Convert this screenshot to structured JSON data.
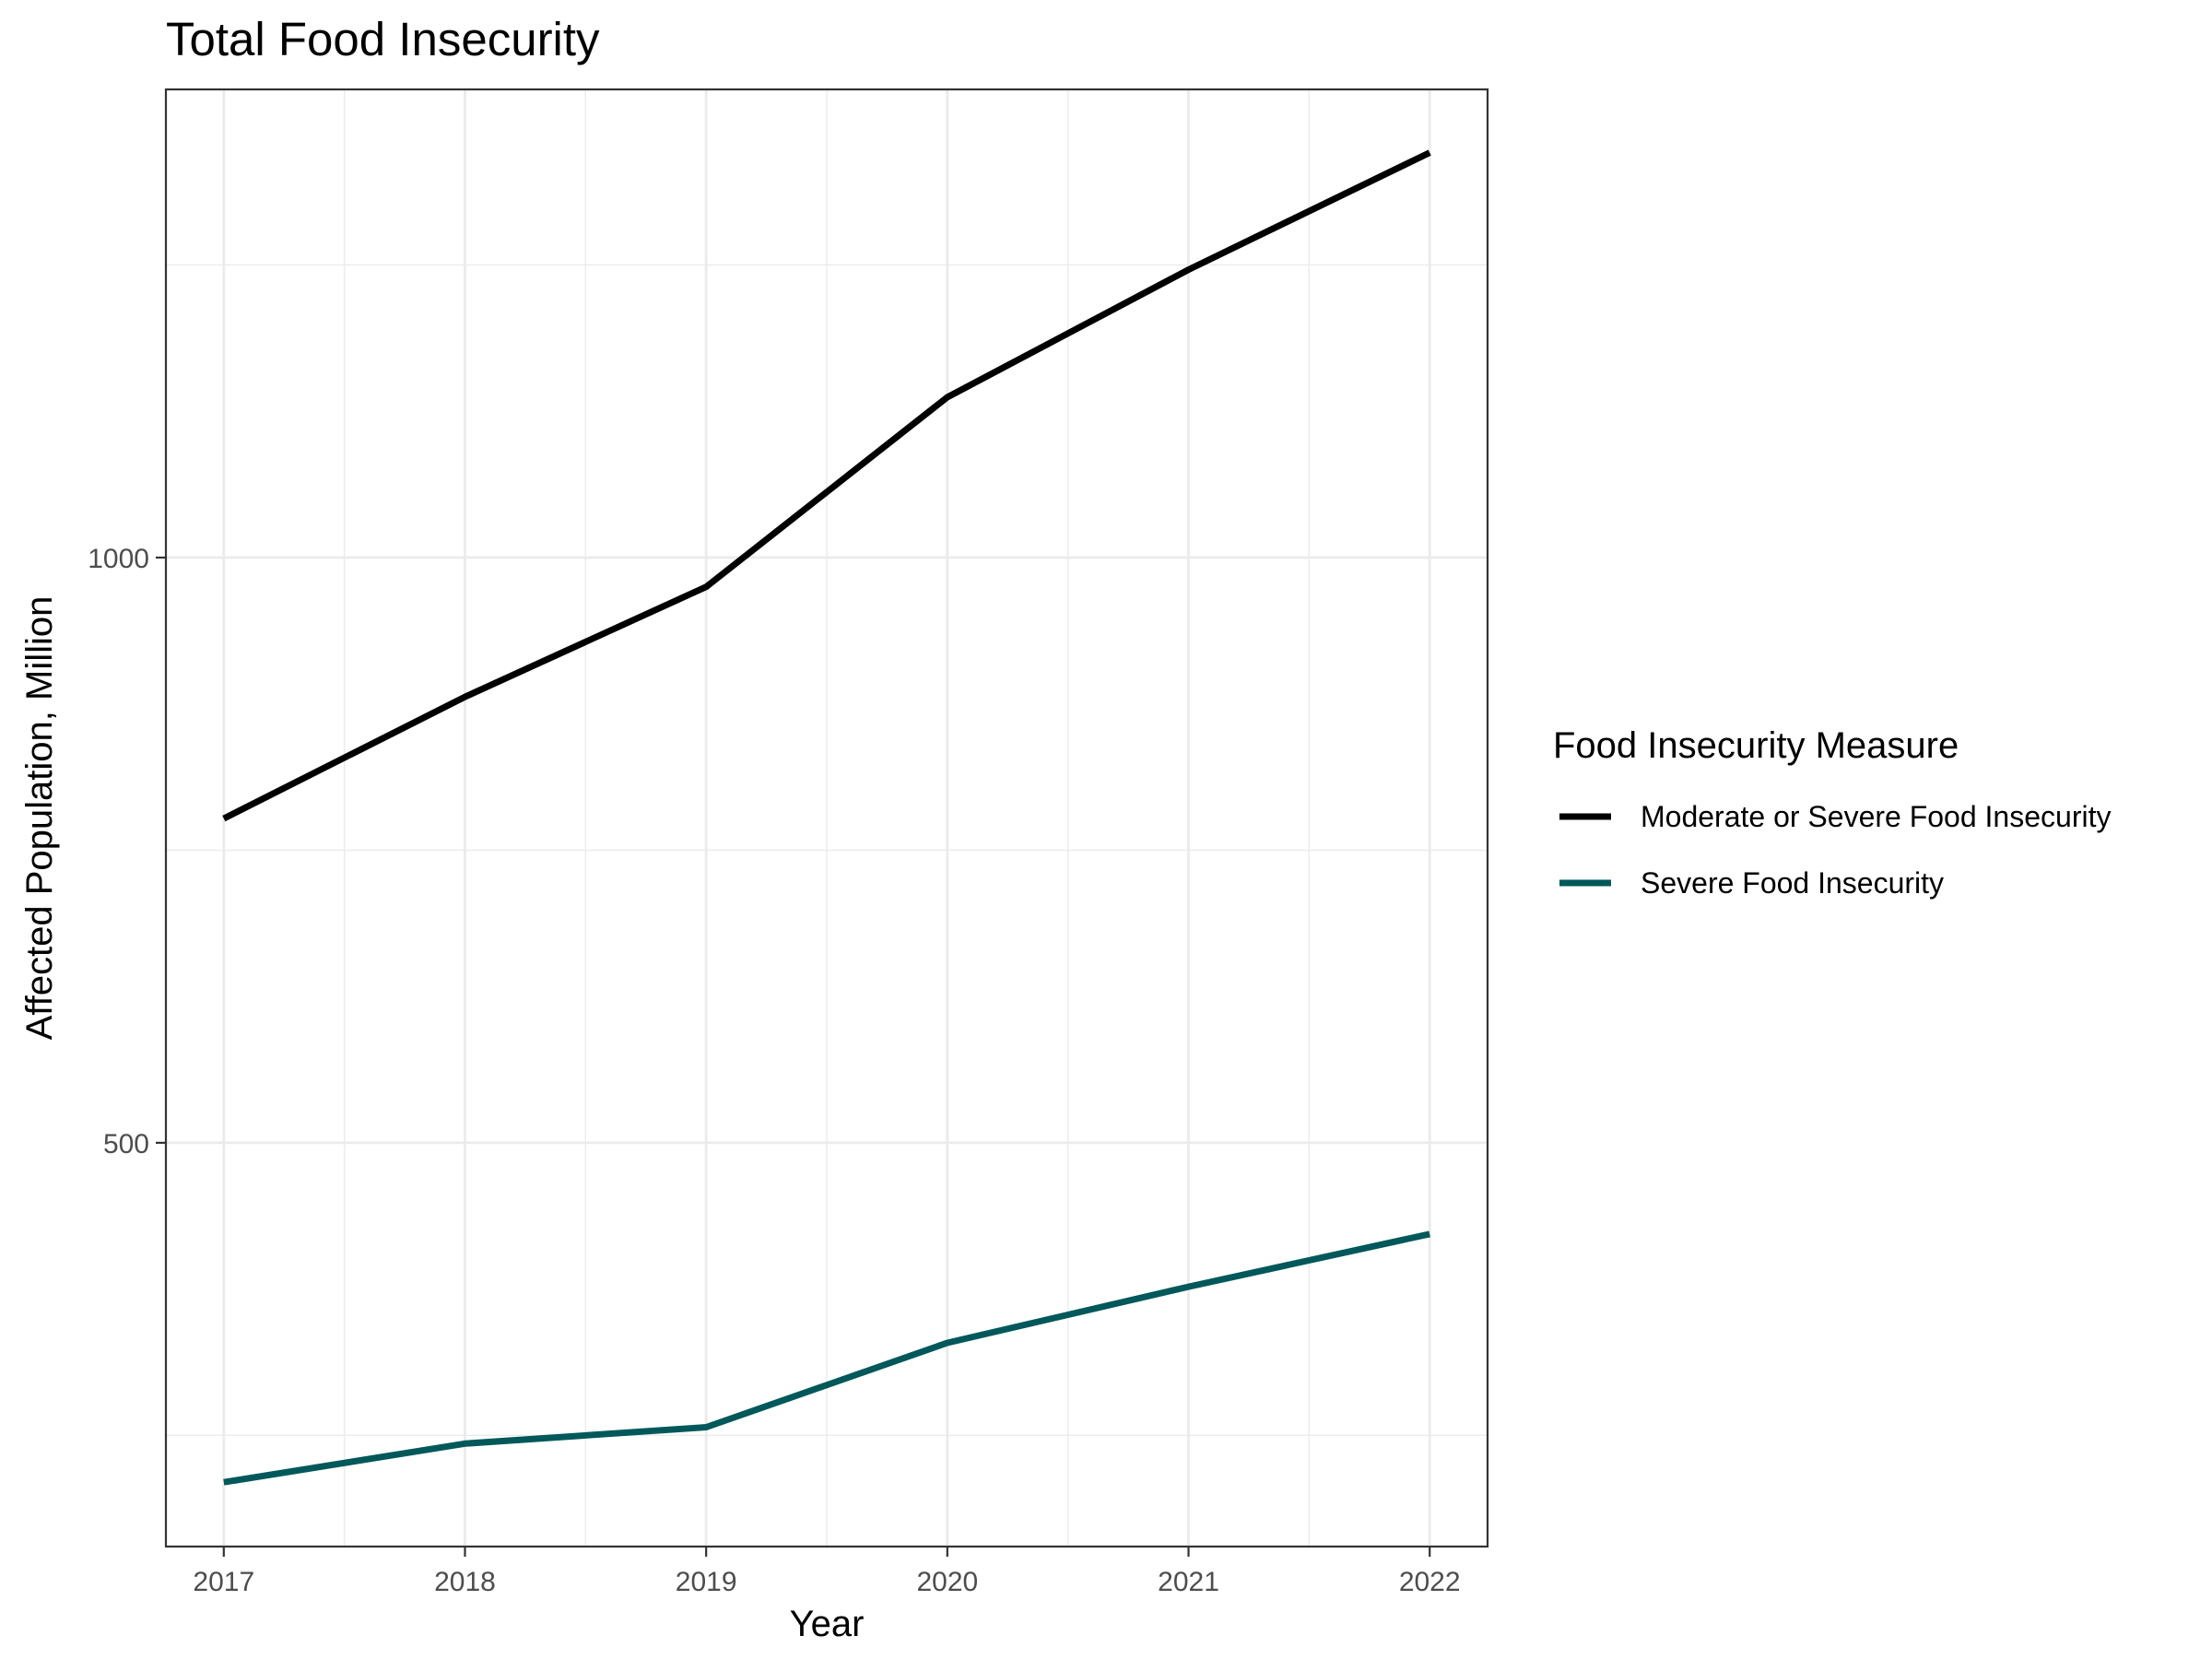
{
  "chart_data": {
    "type": "line",
    "title": "Total Food Insecurity",
    "xlabel": "Year",
    "ylabel": "Affected Population, Million",
    "x": [
      2017,
      2018,
      2019,
      2020,
      2021,
      2022
    ],
    "x_tick_labels": [
      "2017",
      "2018",
      "2019",
      "2020",
      "2021",
      "2022"
    ],
    "y_tick_values": [
      500,
      1000
    ],
    "y_tick_labels": [
      "500",
      "1000"
    ],
    "xlim": [
      2016.76,
      2022.24
    ],
    "ylim": [
      155,
      1400
    ],
    "grid": true,
    "legend": {
      "title": "Food Insecurity Measure",
      "position": "right"
    },
    "series": [
      {
        "name": "Moderate or Severe Food Insecurity",
        "color": "#000000",
        "values": [
          777,
          881,
          975,
          1137,
          1246,
          1346
        ]
      },
      {
        "name": "Severe Food Insecurity",
        "color": "#00585a",
        "values": [
          210,
          243,
          257,
          329,
          377,
          422
        ]
      }
    ]
  }
}
